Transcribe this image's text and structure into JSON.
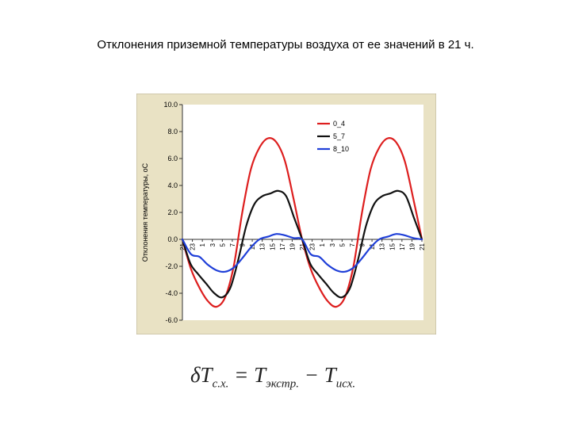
{
  "page": {
    "title": "Отклонения приземной температуры воздуха от ее значений в 21 ч."
  },
  "formula": {
    "lhs_main": "δT",
    "lhs_sub": "с.х.",
    "equals": " = ",
    "t1_main": "T",
    "t1_sub": "экстр.",
    "minus": " − ",
    "t2_main": "T",
    "t2_sub": "исх."
  },
  "colors": {
    "panel_bg": "#e9e2c4",
    "plot_bg": "#ffffff",
    "series_0_4": "#dd1e1e",
    "series_5_7": "#111111",
    "series_8_10": "#1f3fd8"
  },
  "chart_data": {
    "type": "line",
    "title": "",
    "ylabel": "Отклонения температуры, оС",
    "xlabel": "",
    "ylim": [
      -6,
      10
    ],
    "y_ticks": [
      "10.0",
      "8.0",
      "6.0",
      "4.0",
      "2.0",
      "0.0",
      "-2.0",
      "-4.0",
      "-6.0"
    ],
    "y_tick_values": [
      10,
      8,
      6,
      4,
      2,
      0,
      -2,
      -4,
      -6
    ],
    "grid": false,
    "legend_position": "top-right",
    "x_ticks": [
      "21",
      "23",
      "1",
      "3",
      "5",
      "7",
      "9",
      "11",
      "13",
      "15",
      "17",
      "19",
      "21",
      "23",
      "1",
      "3",
      "5",
      "7",
      "9",
      "11",
      "13",
      "15",
      "17",
      "19",
      "21"
    ],
    "series": [
      {
        "name": "0_4",
        "color": "#dd1e1e",
        "values": [
          0.0,
          -2.2,
          -3.6,
          -4.6,
          -5.0,
          -4.3,
          -2.0,
          2.0,
          5.2,
          6.8,
          7.5,
          7.2,
          5.8,
          3.0,
          0.0,
          -2.2,
          -3.6,
          -4.6,
          -5.0,
          -4.3,
          -2.0,
          2.0,
          5.2,
          6.8,
          7.5,
          7.2,
          5.8,
          3.0,
          0.0
        ]
      },
      {
        "name": "5_7",
        "color": "#111111",
        "values": [
          0.0,
          -1.8,
          -2.6,
          -3.3,
          -4.0,
          -4.3,
          -3.6,
          -1.5,
          1.0,
          2.6,
          3.2,
          3.4,
          3.6,
          3.2,
          1.6,
          0.0,
          -1.8,
          -2.6,
          -3.3,
          -4.0,
          -4.3,
          -3.6,
          -1.5,
          1.0,
          2.6,
          3.2,
          3.4,
          3.6,
          3.2,
          1.6,
          0.0
        ]
      },
      {
        "name": "8_10",
        "color": "#1f3fd8",
        "values": [
          0.0,
          -1.1,
          -1.3,
          -1.9,
          -2.3,
          -2.4,
          -2.1,
          -1.4,
          -0.6,
          0.0,
          0.2,
          0.4,
          0.3,
          0.1,
          0.0,
          -1.1,
          -1.3,
          -1.9,
          -2.3,
          -2.4,
          -2.1,
          -1.4,
          -0.6,
          0.0,
          0.2,
          0.4,
          0.3,
          0.1,
          0.0
        ]
      }
    ]
  }
}
